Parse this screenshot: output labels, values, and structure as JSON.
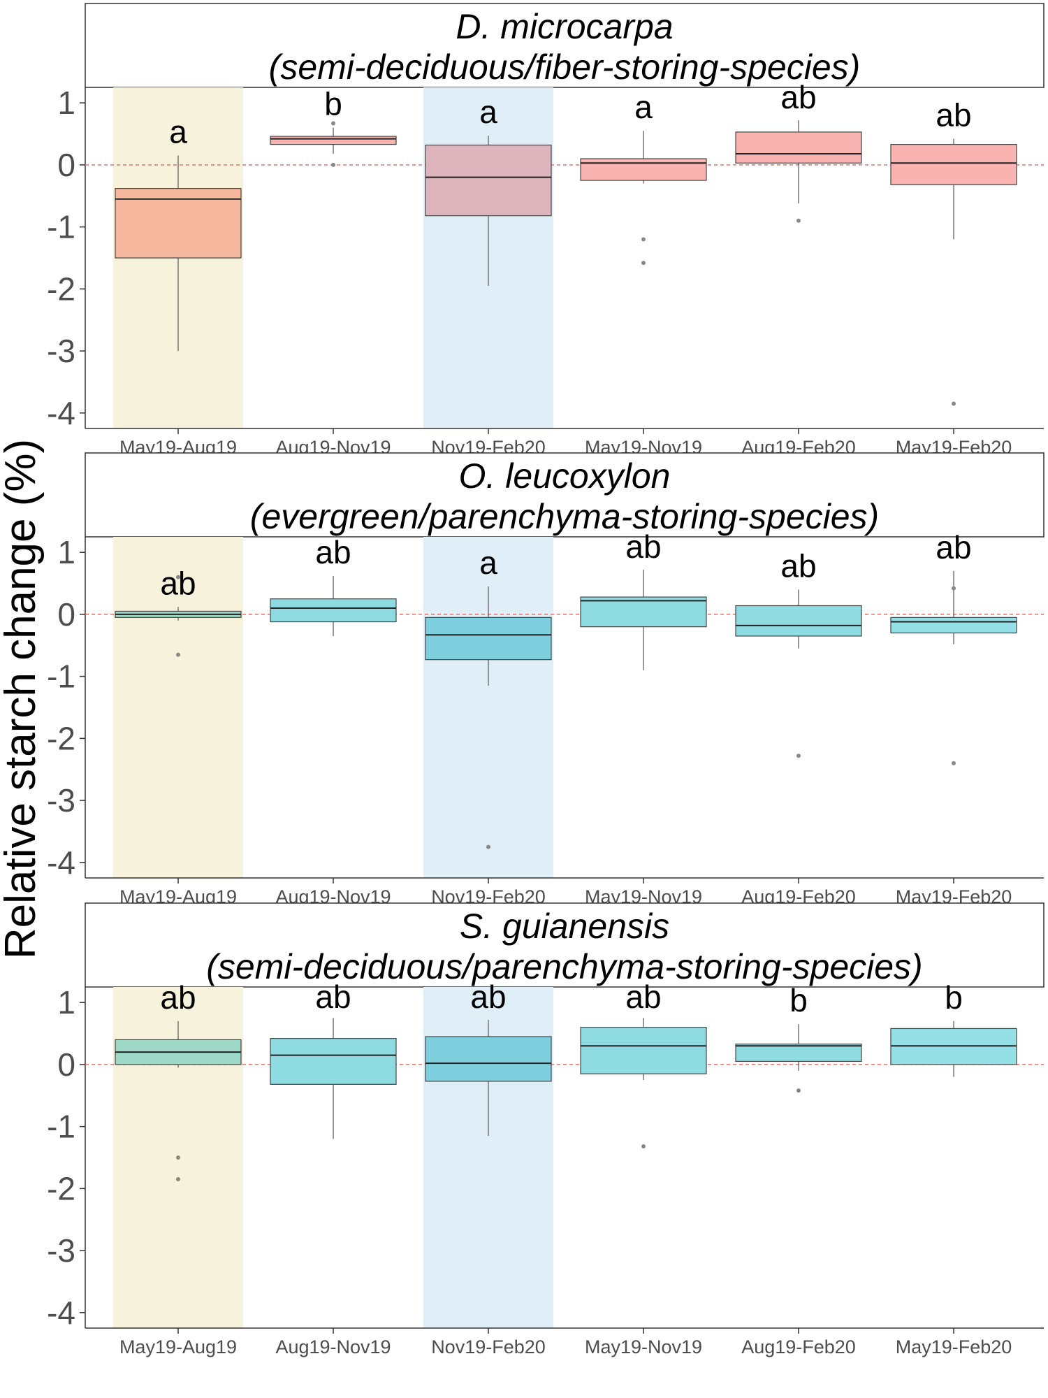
{
  "chart_data": {
    "type": "box",
    "y_axis_label": "Relative starch change (%)",
    "ylim": [
      -4.25,
      1.25
    ],
    "y_ticks": [
      1,
      0,
      -1,
      -2,
      -3,
      -4
    ],
    "reference_line_y": 0,
    "categories": [
      "May19-Aug19",
      "Aug19-Nov19",
      "Nov19-Feb20",
      "May19-Nov19",
      "Aug19-Feb20",
      "May19-Feb20"
    ],
    "highlight_bands": [
      {
        "category": "May19-Aug19",
        "color": "#f7f2dc"
      },
      {
        "category": "Nov19-Feb20",
        "color": "#dfeef7"
      }
    ],
    "panels": [
      {
        "title_line1": "D. microcarpa",
        "title_line2": "(semi-deciduous/fiber-storing-species)",
        "boxes": [
          {
            "category": "May19-Aug19",
            "letter": "a",
            "q1": -1.5,
            "median": -0.55,
            "q3": -0.38,
            "whisker_low": -3.0,
            "whisker_high": 0.15,
            "outliers": [],
            "fill": "#f6b9a0"
          },
          {
            "category": "Aug19-Nov19",
            "letter": "b",
            "q1": 0.33,
            "median": 0.42,
            "q3": 0.46,
            "whisker_low": 0.18,
            "whisker_high": 0.6,
            "outliers": [
              0.0,
              0.67
            ],
            "fill": "#f9b3b0"
          },
          {
            "category": "Nov19-Feb20",
            "letter": "a",
            "q1": -0.82,
            "median": -0.2,
            "q3": 0.32,
            "whisker_low": -1.95,
            "whisker_high": 0.47,
            "outliers": [],
            "fill": "#ddb4bc"
          },
          {
            "category": "May19-Nov19",
            "letter": "a",
            "q1": -0.25,
            "median": 0.03,
            "q3": 0.1,
            "whisker_low": -0.3,
            "whisker_high": 0.55,
            "outliers": [
              -1.2,
              -1.58
            ],
            "fill": "#f9b3b0"
          },
          {
            "category": "Aug19-Feb20",
            "letter": "ab",
            "q1": 0.03,
            "median": 0.18,
            "q3": 0.53,
            "whisker_low": -0.62,
            "whisker_high": 0.72,
            "outliers": [
              -0.9
            ],
            "fill": "#f9b3b0"
          },
          {
            "category": "May19-Feb20",
            "letter": "ab",
            "q1": -0.32,
            "median": 0.03,
            "q3": 0.33,
            "whisker_low": -1.2,
            "whisker_high": 0.42,
            "outliers": [
              -3.85
            ],
            "fill": "#f9b3b0"
          }
        ]
      },
      {
        "title_line1": "O. leucoxylon",
        "title_line2": "(evergreen/parenchyma-storing-species)",
        "boxes": [
          {
            "category": "May19-Aug19",
            "letter": "ab",
            "q1": -0.05,
            "median": 0.0,
            "q3": 0.05,
            "whisker_low": -0.1,
            "whisker_high": 0.12,
            "outliers": [
              0.6,
              -0.65
            ],
            "fill": "#9ed9c8"
          },
          {
            "category": "Aug19-Nov19",
            "letter": "ab",
            "q1": -0.12,
            "median": 0.1,
            "q3": 0.25,
            "whisker_low": -0.35,
            "whisker_high": 0.62,
            "outliers": [],
            "fill": "#8fdbe2"
          },
          {
            "category": "Nov19-Feb20",
            "letter": "a",
            "q1": -0.73,
            "median": -0.33,
            "q3": -0.05,
            "whisker_low": -1.15,
            "whisker_high": 0.45,
            "outliers": [
              -3.75
            ],
            "fill": "#7fd0de"
          },
          {
            "category": "May19-Nov19",
            "letter": "ab",
            "q1": -0.2,
            "median": 0.22,
            "q3": 0.28,
            "whisker_low": -0.9,
            "whisker_high": 0.72,
            "outliers": [],
            "fill": "#8fdbe2"
          },
          {
            "category": "Aug19-Feb20",
            "letter": "ab",
            "q1": -0.35,
            "median": -0.18,
            "q3": 0.14,
            "whisker_low": -0.55,
            "whisker_high": 0.4,
            "outliers": [
              -2.28
            ],
            "fill": "#8fdbe2"
          },
          {
            "category": "May19-Feb20",
            "letter": "ab",
            "q1": -0.3,
            "median": -0.12,
            "q3": -0.05,
            "whisker_low": -0.48,
            "whisker_high": 0.7,
            "outliers": [
              0.42,
              -2.4
            ],
            "fill": "#95dfe6"
          }
        ]
      },
      {
        "title_line1": "S. guianensis",
        "title_line2": "(semi-deciduous/parenchyma-storing-species)",
        "boxes": [
          {
            "category": "May19-Aug19",
            "letter": "ab",
            "q1": 0.0,
            "median": 0.2,
            "q3": 0.4,
            "whisker_low": -0.05,
            "whisker_high": 0.7,
            "outliers": [
              -1.5,
              -1.85
            ],
            "fill": "#9ed9c8"
          },
          {
            "category": "Aug19-Nov19",
            "letter": "ab",
            "q1": -0.32,
            "median": 0.15,
            "q3": 0.42,
            "whisker_low": -1.2,
            "whisker_high": 0.75,
            "outliers": [],
            "fill": "#8fdbe2"
          },
          {
            "category": "Nov19-Feb20",
            "letter": "ab",
            "q1": -0.27,
            "median": 0.02,
            "q3": 0.45,
            "whisker_low": -1.15,
            "whisker_high": 0.72,
            "outliers": [],
            "fill": "#7fd0de"
          },
          {
            "category": "May19-Nov19",
            "letter": "ab",
            "q1": -0.15,
            "median": 0.3,
            "q3": 0.6,
            "whisker_low": -0.25,
            "whisker_high": 0.75,
            "outliers": [
              -1.32
            ],
            "fill": "#8fdbe2"
          },
          {
            "category": "Aug19-Feb20",
            "letter": "b",
            "q1": 0.05,
            "median": 0.3,
            "q3": 0.33,
            "whisker_low": -0.1,
            "whisker_high": 0.65,
            "outliers": [
              -0.42
            ],
            "fill": "#8fdbe2"
          },
          {
            "category": "May19-Feb20",
            "letter": "b",
            "q1": 0.0,
            "median": 0.3,
            "q3": 0.58,
            "whisker_low": -0.2,
            "whisker_high": 0.7,
            "outliers": [],
            "fill": "#95dfe6"
          }
        ]
      }
    ]
  }
}
